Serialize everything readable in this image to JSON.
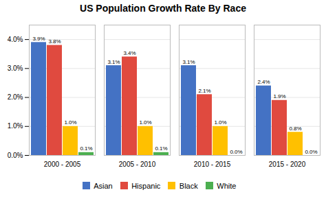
{
  "chart_data": {
    "type": "bar",
    "title": "US Population Growth Rate By Race",
    "categories": [
      "2000 - 2005",
      "2005 - 2010",
      "2010 - 2015",
      "2015 - 2020"
    ],
    "series": [
      {
        "name": "Asian",
        "color": "#4472C4",
        "values": [
          3.9,
          3.1,
          3.1,
          2.4
        ],
        "value_labels": [
          "3.9%",
          "3.1%",
          "3.1%",
          "2.4%"
        ]
      },
      {
        "name": "Hispanic",
        "color": "#E04A3F",
        "values": [
          3.8,
          3.4,
          2.1,
          1.9
        ],
        "value_labels": [
          "3.8%",
          "3.4%",
          "2.1%",
          "1.9%"
        ]
      },
      {
        "name": "Black",
        "color": "#FFC000",
        "values": [
          1.0,
          1.0,
          1.0,
          0.8
        ],
        "value_labels": [
          "1.0%",
          "1.0%",
          "1.0%",
          "0.8%"
        ]
      },
      {
        "name": "White",
        "color": "#4CAF50",
        "values": [
          0.1,
          0.1,
          0.0,
          0.0
        ],
        "value_labels": [
          "0.1%",
          "0.1%",
          "0.0%",
          "0.0%"
        ]
      }
    ],
    "ylim": [
      0,
      4.5
    ],
    "yticks": [
      {
        "value": 0.0,
        "label": "0.0%"
      },
      {
        "value": 1.0,
        "label": "1.0%"
      },
      {
        "value": 2.0,
        "label": "2.0%"
      },
      {
        "value": 3.0,
        "label": "3.0%"
      },
      {
        "value": 4.0,
        "label": "4.0%"
      }
    ],
    "grid": true,
    "data_labels": true,
    "legend": "bottom"
  }
}
